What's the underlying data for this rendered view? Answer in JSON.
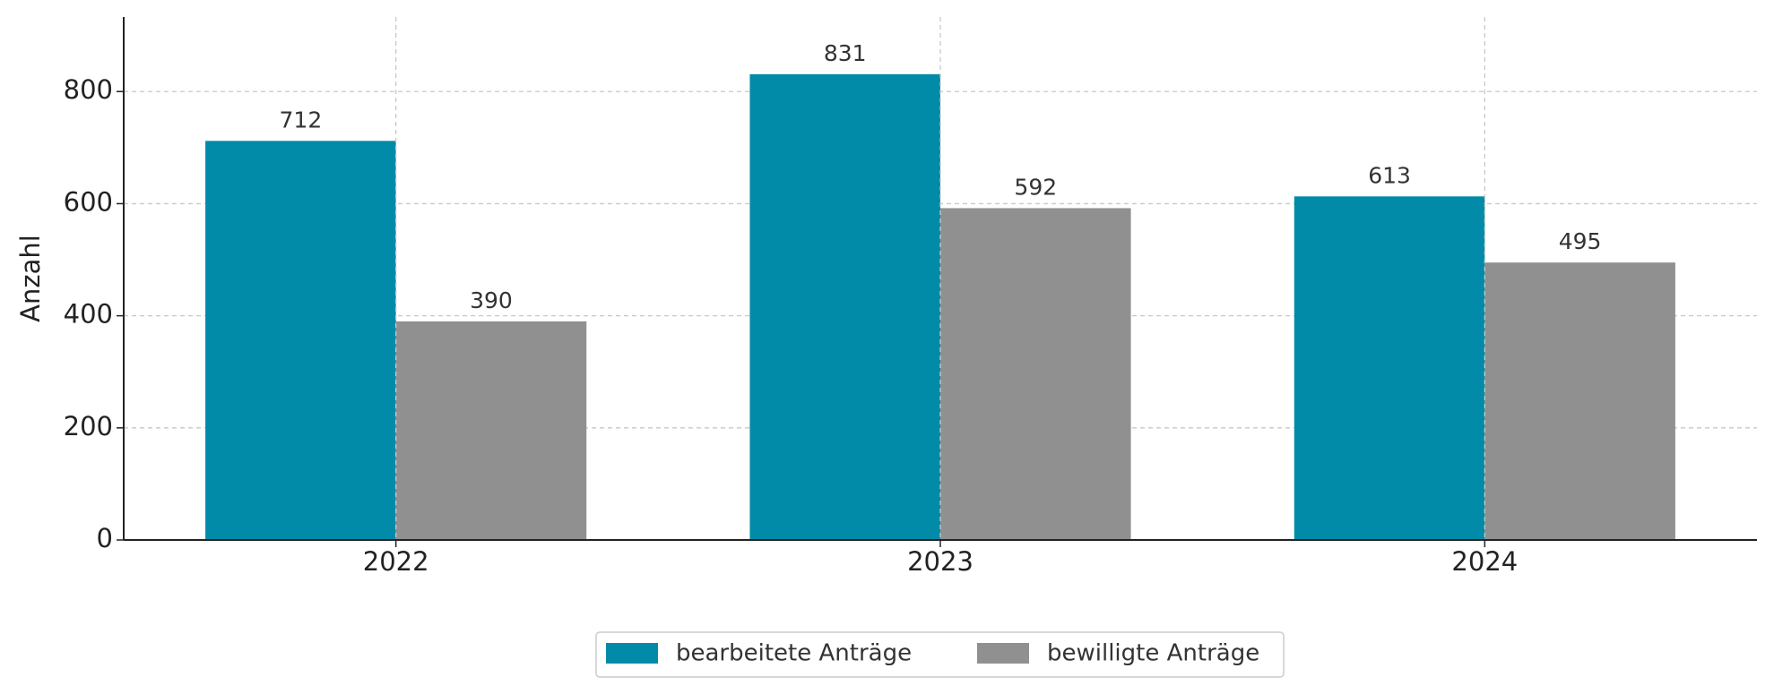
{
  "chart_data": {
    "type": "bar",
    "y_label": "Anzahl",
    "categories": [
      "2022",
      "2023",
      "2024"
    ],
    "series": [
      {
        "name": "bearbeitete Anträge",
        "color": "#028ba8",
        "values": [
          712,
          831,
          613
        ]
      },
      {
        "name": "bewilligte Anträge",
        "color": "#909090",
        "values": [
          390,
          592,
          495
        ]
      }
    ],
    "ylim": [
      0,
      933
    ],
    "yticks": [
      0,
      200,
      400,
      600,
      800
    ],
    "grid": true,
    "legend": "bottom"
  }
}
